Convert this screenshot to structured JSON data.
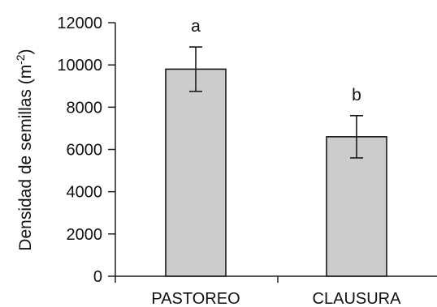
{
  "chart_data": {
    "type": "bar",
    "categories": [
      "PASTOREO",
      "CLAUSURA"
    ],
    "series": [
      {
        "values": [
          9800,
          6600
        ],
        "error": [
          1050,
          1000
        ],
        "annotations": [
          "a",
          "b"
        ],
        "color": "#cccccc"
      }
    ],
    "title": "",
    "xlabel": "",
    "ylabel": "Densidad de semillas (m",
    "ylabel_superscript": "-2",
    "ylabel_close": ")",
    "ylim": [
      0,
      12000
    ],
    "yticks": [
      0,
      2000,
      4000,
      6000,
      8000,
      10000,
      12000
    ],
    "ytick_labels": [
      "0",
      "2000",
      "4000",
      "6000",
      "8000",
      "10000",
      "12000"
    ],
    "grid": false,
    "legend": "none"
  }
}
